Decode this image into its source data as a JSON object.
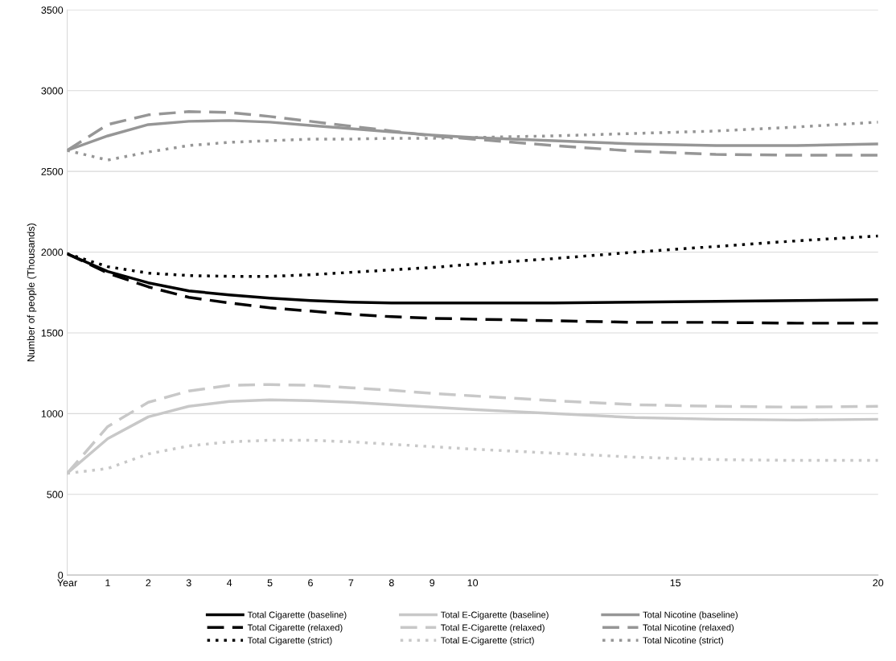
{
  "chart_data": {
    "type": "line",
    "ylabel": "Number of people (Thousands)",
    "x": [
      0,
      1,
      2,
      3,
      4,
      5,
      6,
      7,
      8,
      9,
      10,
      12,
      14,
      16,
      18,
      20
    ],
    "xlim": [
      0,
      20
    ],
    "xticks": [
      {
        "value": 0,
        "label": "Year"
      },
      1,
      2,
      3,
      4,
      5,
      6,
      7,
      8,
      9,
      10,
      15,
      20
    ],
    "ylim": [
      0,
      3500
    ],
    "yticks": [
      0,
      500,
      1000,
      1500,
      2000,
      2500,
      3000,
      3500
    ],
    "grid": "y",
    "legend": "bottom",
    "marker": "none",
    "series": [
      {
        "name": "Total Cigarette (baseline)",
        "color": "#000000",
        "line_style": "solid",
        "values": [
          1990,
          1880,
          1810,
          1760,
          1735,
          1715,
          1700,
          1690,
          1685,
          1685,
          1685,
          1685,
          1690,
          1695,
          1700,
          1705
        ]
      },
      {
        "name": "Total Cigarette (relaxed)",
        "color": "#000000",
        "line_style": "dashed",
        "values": [
          1990,
          1870,
          1785,
          1720,
          1685,
          1655,
          1635,
          1615,
          1600,
          1590,
          1585,
          1575,
          1565,
          1565,
          1560,
          1560
        ]
      },
      {
        "name": "Total Cigarette (strict)",
        "color": "#000000",
        "line_style": "dotted",
        "values": [
          1990,
          1910,
          1870,
          1855,
          1850,
          1850,
          1860,
          1875,
          1890,
          1905,
          1925,
          1960,
          2000,
          2035,
          2070,
          2100
        ]
      },
      {
        "name": "Total E-Cigarette (baseline)",
        "color": "#c8c8c8",
        "line_style": "solid",
        "values": [
          630,
          845,
          980,
          1045,
          1075,
          1085,
          1080,
          1070,
          1055,
          1040,
          1025,
          1000,
          975,
          965,
          960,
          965
        ]
      },
      {
        "name": "Total E-Cigarette (relaxed)",
        "color": "#c8c8c8",
        "line_style": "dashed",
        "values": [
          630,
          920,
          1070,
          1140,
          1175,
          1180,
          1175,
          1160,
          1145,
          1125,
          1110,
          1080,
          1055,
          1045,
          1040,
          1045
        ]
      },
      {
        "name": "Total E-Cigarette (strict)",
        "color": "#c8c8c8",
        "line_style": "dotted",
        "values": [
          630,
          660,
          750,
          800,
          825,
          835,
          835,
          825,
          810,
          795,
          780,
          755,
          730,
          715,
          710,
          710
        ]
      },
      {
        "name": "Total Nicotine (baseline)",
        "color": "#969696",
        "line_style": "solid",
        "values": [
          2630,
          2720,
          2790,
          2810,
          2815,
          2805,
          2785,
          2765,
          2745,
          2725,
          2710,
          2690,
          2670,
          2660,
          2660,
          2670
        ]
      },
      {
        "name": "Total Nicotine (relaxed)",
        "color": "#969696",
        "line_style": "dashed",
        "values": [
          2630,
          2790,
          2850,
          2870,
          2865,
          2840,
          2810,
          2780,
          2750,
          2720,
          2700,
          2660,
          2625,
          2605,
          2600,
          2600
        ]
      },
      {
        "name": "Total Nicotine (strict)",
        "color": "#969696",
        "line_style": "dotted",
        "values": [
          2630,
          2570,
          2620,
          2660,
          2680,
          2690,
          2700,
          2700,
          2705,
          2705,
          2710,
          2720,
          2735,
          2750,
          2775,
          2805
        ]
      }
    ]
  }
}
